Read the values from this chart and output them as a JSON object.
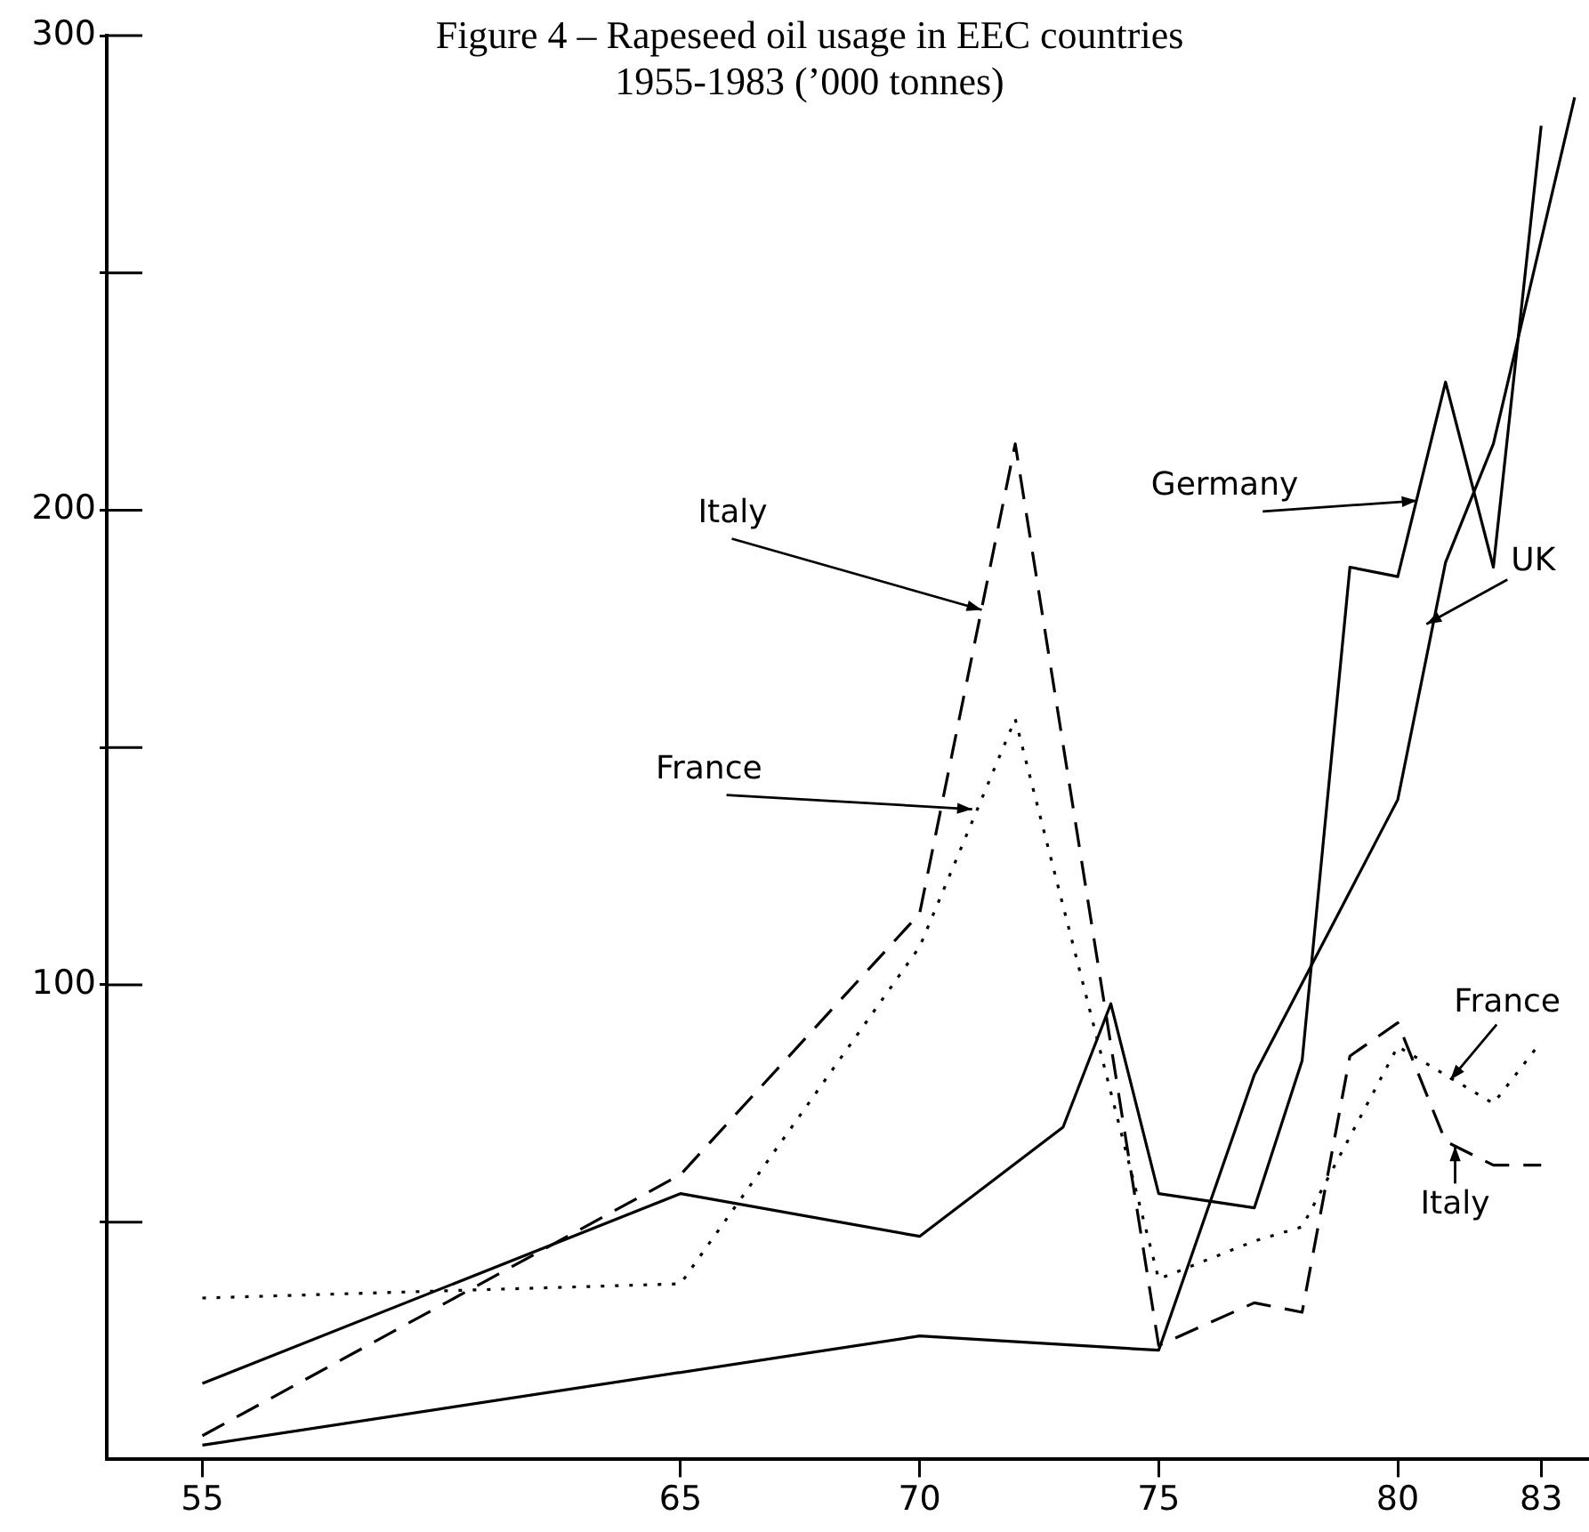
{
  "chart_data": {
    "type": "line",
    "title": "Figure 4 – Rapeseed oil usage in EEC countries\n1955-1983 (’000 tonnes)",
    "xlim": [
      53,
      84
    ],
    "xticks": [
      55,
      65,
      70,
      75,
      80,
      83
    ],
    "ylim": [
      0,
      300
    ],
    "yticks": [
      {
        "value": 50,
        "label": null
      },
      100,
      {
        "value": 150,
        "label": null
      },
      200,
      {
        "value": 250,
        "label": null
      },
      300
    ],
    "series": [
      {
        "color": "#000000",
        "line_style": "solid",
        "x": [
          55,
          65,
          70,
          73,
          74,
          75,
          77,
          78,
          79,
          80,
          81,
          82,
          83
        ],
        "values": [
          16,
          56,
          47,
          70,
          96,
          56,
          53,
          84,
          188,
          186,
          227,
          188,
          281
        ]
      },
      {
        "color": "#000000",
        "line_style": "solid",
        "x": [
          55,
          70,
          75,
          77,
          80,
          81,
          82,
          83.7
        ],
        "values": [
          3,
          26,
          23,
          81,
          139,
          189,
          214,
          287
        ]
      },
      {
        "color": "#000000",
        "line_style": "dotted",
        "x": [
          55,
          65,
          70,
          72,
          75,
          77,
          78,
          80,
          81,
          82,
          83
        ],
        "values": [
          34,
          37,
          108,
          156,
          38,
          46,
          49,
          87,
          81,
          75,
          88
        ]
      },
      {
        "color": "#000000",
        "line_style": "dashed",
        "x": [
          55,
          65,
          70,
          72,
          75,
          77,
          78,
          79,
          80,
          81,
          82,
          83
        ],
        "values": [
          5,
          60,
          115,
          214,
          24,
          33,
          31,
          85,
          92,
          67,
          62,
          62
        ]
      }
    ],
    "annotations": [
      {
        "text": "Italy",
        "x": 71.3,
        "y": 179
      },
      {
        "text": "France",
        "x": 71.1,
        "y": 137
      },
      {
        "text": "Germany",
        "x": 80.4,
        "y": 202
      },
      {
        "text": "UK",
        "x": 80.6,
        "y": 176
      },
      {
        "text": "France",
        "x": 81.1,
        "y": 80
      },
      {
        "text": "Italy",
        "x": 81.2,
        "y": 66
      }
    ]
  }
}
